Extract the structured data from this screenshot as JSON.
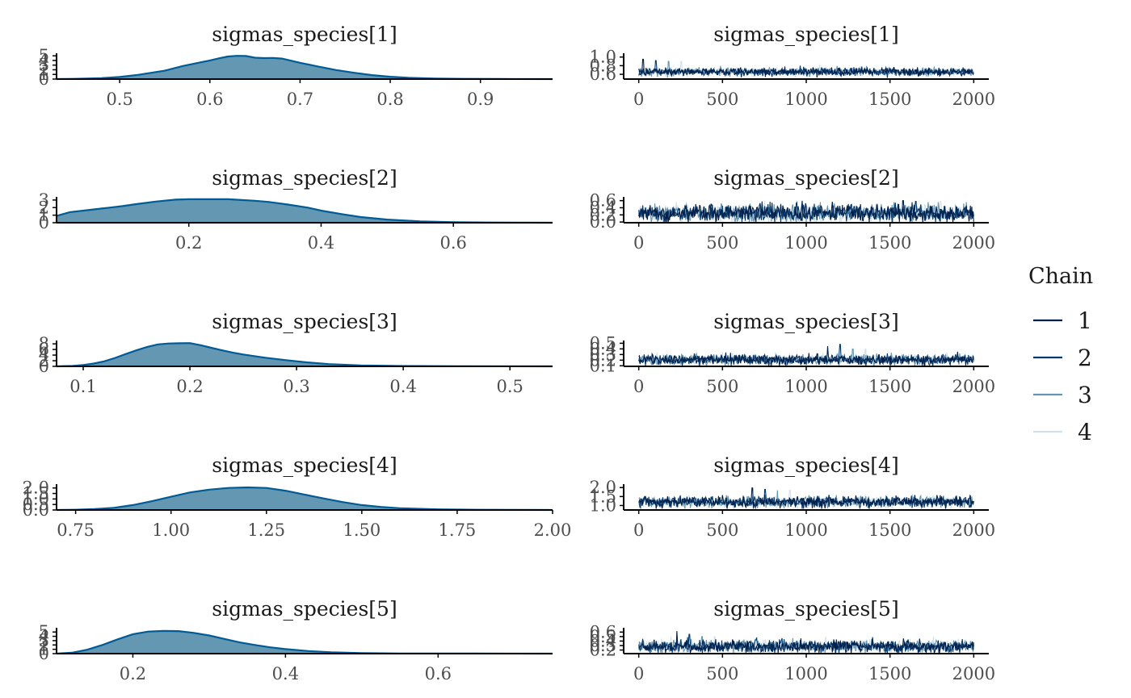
{
  "colors": {
    "chain": [
      "#011f4b",
      "#03396c",
      "#6497b1",
      "#d1e1ec"
    ],
    "density_fill": "#6497b1",
    "density_line": "#005b96",
    "axis": "#000000"
  },
  "legend": {
    "title": "Chain",
    "entries": [
      "1",
      "2",
      "3",
      "4"
    ],
    "placement": "right"
  },
  "chart_data": [
    {
      "type": "area",
      "subtype": "density",
      "title": "sigmas_species[1]",
      "xlim": [
        0.43,
        0.98
      ],
      "ylim": [
        0,
        5.2
      ],
      "x_ticks": [
        0.5,
        0.6,
        0.7,
        0.8,
        0.9
      ],
      "x_tick_labels": [
        "0.5",
        "0.6",
        "0.7",
        "0.8",
        "0.9"
      ],
      "y_ticks": [
        0,
        1,
        2,
        3,
        4,
        5
      ],
      "y_tick_labels": [
        "0",
        "1",
        "2",
        "3",
        "4",
        "5"
      ],
      "x": [
        0.43,
        0.45,
        0.48,
        0.5,
        0.52,
        0.55,
        0.57,
        0.59,
        0.6,
        0.61,
        0.62,
        0.63,
        0.64,
        0.65,
        0.66,
        0.67,
        0.68,
        0.7,
        0.72,
        0.74,
        0.76,
        0.78,
        0.8,
        0.82,
        0.85,
        0.88,
        0.92,
        0.98
      ],
      "y": [
        0.0,
        0.05,
        0.2,
        0.45,
        0.9,
        1.8,
        2.8,
        3.6,
        4.0,
        4.45,
        4.85,
        5.0,
        4.95,
        4.6,
        4.5,
        4.55,
        4.4,
        3.5,
        2.7,
        1.95,
        1.35,
        0.85,
        0.5,
        0.28,
        0.12,
        0.05,
        0.02,
        0.0
      ]
    },
    {
      "type": "line",
      "subtype": "trace",
      "title": "sigmas_species[1]",
      "xlim": [
        -90,
        2090
      ],
      "ylim": [
        0.49,
        1.05
      ],
      "x_ticks": [
        0,
        500,
        1000,
        1500,
        2000
      ],
      "x_tick_labels": [
        "0",
        "500",
        "1000",
        "1500",
        "2000"
      ],
      "y_ticks": [
        0.6,
        0.8,
        1.0
      ],
      "y_tick_labels": [
        "0.6",
        "0.8",
        "1.0"
      ],
      "n_iter": 2000,
      "series": [
        {
          "chain": "1",
          "mean": 0.66,
          "sd": 0.045,
          "min": 0.52,
          "max": 0.95
        },
        {
          "chain": "2",
          "mean": 0.66,
          "sd": 0.045,
          "min": 0.52,
          "max": 0.92
        },
        {
          "chain": "3",
          "mean": 0.66,
          "sd": 0.045,
          "min": 0.52,
          "max": 0.9
        },
        {
          "chain": "4",
          "mean": 0.66,
          "sd": 0.045,
          "min": 0.52,
          "max": 0.9
        }
      ]
    },
    {
      "type": "area",
      "subtype": "density",
      "title": "sigmas_species[2]",
      "xlim": [
        0.0,
        0.75
      ],
      "ylim": [
        0,
        3.2
      ],
      "x_ticks": [
        0.2,
        0.4,
        0.6
      ],
      "x_tick_labels": [
        "0.2",
        "0.4",
        "0.6"
      ],
      "y_ticks": [
        0,
        1,
        2,
        3
      ],
      "y_tick_labels": [
        "0",
        "1",
        "2",
        "3"
      ],
      "x": [
        0.0,
        0.02,
        0.05,
        0.08,
        0.1,
        0.12,
        0.15,
        0.18,
        0.2,
        0.24,
        0.26,
        0.28,
        0.3,
        0.32,
        0.35,
        0.38,
        0.4,
        0.43,
        0.46,
        0.5,
        0.55,
        0.6,
        0.65,
        0.75
      ],
      "y": [
        0.9,
        1.4,
        1.7,
        2.0,
        2.2,
        2.45,
        2.8,
        3.05,
        3.1,
        3.1,
        3.1,
        3.0,
        2.9,
        2.75,
        2.4,
        2.0,
        1.6,
        1.15,
        0.75,
        0.42,
        0.18,
        0.07,
        0.03,
        0.0
      ]
    },
    {
      "type": "line",
      "subtype": "trace",
      "title": "sigmas_species[2]",
      "xlim": [
        -90,
        2090
      ],
      "ylim": [
        -0.02,
        0.66
      ],
      "x_ticks": [
        0,
        500,
        1000,
        1500,
        2000
      ],
      "x_tick_labels": [
        "0",
        "500",
        "1000",
        "1500",
        "2000"
      ],
      "y_ticks": [
        0.0,
        0.2,
        0.4,
        0.6
      ],
      "y_tick_labels": [
        "0.0",
        "0.2",
        "0.4",
        "0.6"
      ],
      "n_iter": 2000,
      "series": [
        {
          "chain": "1",
          "mean": 0.25,
          "sd": 0.12,
          "min": 0.0,
          "max": 0.6
        },
        {
          "chain": "2",
          "mean": 0.25,
          "sd": 0.12,
          "min": 0.0,
          "max": 0.58
        },
        {
          "chain": "3",
          "mean": 0.25,
          "sd": 0.12,
          "min": 0.0,
          "max": 0.56
        },
        {
          "chain": "4",
          "mean": 0.25,
          "sd": 0.12,
          "min": 0.0,
          "max": 0.58
        }
      ]
    },
    {
      "type": "area",
      "subtype": "density",
      "title": "sigmas_species[3]",
      "xlim": [
        0.075,
        0.54
      ],
      "ylim": [
        0,
        8.6
      ],
      "x_ticks": [
        0.1,
        0.2,
        0.3,
        0.4,
        0.5
      ],
      "x_tick_labels": [
        "0.1",
        "0.2",
        "0.3",
        "0.4",
        "0.5"
      ],
      "y_ticks": [
        0,
        2,
        4,
        6,
        8
      ],
      "y_tick_labels": [
        "0",
        "2",
        "4",
        "6",
        "8"
      ],
      "x": [
        0.075,
        0.09,
        0.1,
        0.11,
        0.12,
        0.13,
        0.14,
        0.15,
        0.16,
        0.17,
        0.18,
        0.19,
        0.2,
        0.21,
        0.22,
        0.23,
        0.24,
        0.25,
        0.27,
        0.29,
        0.31,
        0.33,
        0.36,
        0.4,
        0.45,
        0.54
      ],
      "y": [
        0.0,
        0.15,
        0.5,
        1.0,
        1.8,
        3.0,
        4.4,
        5.7,
        6.9,
        7.8,
        8.1,
        8.2,
        8.25,
        7.5,
        6.6,
        5.7,
        4.9,
        4.2,
        3.1,
        2.2,
        1.4,
        0.8,
        0.35,
        0.12,
        0.03,
        0.0
      ]
    },
    {
      "type": "line",
      "subtype": "trace",
      "title": "sigmas_species[3]",
      "xlim": [
        -90,
        2090
      ],
      "ylim": [
        0.09,
        0.52
      ],
      "x_ticks": [
        0,
        500,
        1000,
        1500,
        2000
      ],
      "x_tick_labels": [
        "0",
        "500",
        "1000",
        "1500",
        "2000"
      ],
      "y_ticks": [
        0.1,
        0.2,
        0.3,
        0.4,
        0.5
      ],
      "y_tick_labels": [
        "0.1",
        "0.2",
        "0.3",
        "0.4",
        "0.5"
      ],
      "n_iter": 2000,
      "series": [
        {
          "chain": "1",
          "mean": 0.21,
          "sd": 0.045,
          "min": 0.1,
          "max": 0.45
        },
        {
          "chain": "2",
          "mean": 0.21,
          "sd": 0.045,
          "min": 0.1,
          "max": 0.48
        },
        {
          "chain": "3",
          "mean": 0.21,
          "sd": 0.045,
          "min": 0.1,
          "max": 0.4
        },
        {
          "chain": "4",
          "mean": 0.21,
          "sd": 0.045,
          "min": 0.1,
          "max": 0.4
        }
      ]
    },
    {
      "type": "area",
      "subtype": "density",
      "title": "sigmas_species[4]",
      "xlim": [
        0.7,
        2.0
      ],
      "ylim": [
        0,
        2.2
      ],
      "x_ticks": [
        0.75,
        1.0,
        1.25,
        1.5,
        1.75,
        2.0
      ],
      "x_tick_labels": [
        "0.75",
        "1.00",
        "1.25",
        "1.50",
        "1.75",
        "2.00"
      ],
      "y_ticks": [
        0.0,
        0.5,
        1.0,
        1.5,
        2.0
      ],
      "y_tick_labels": [
        "0.0",
        "0.5",
        "1.0",
        "1.5",
        "2.0"
      ],
      "x": [
        0.7,
        0.75,
        0.8,
        0.85,
        0.9,
        0.95,
        1.0,
        1.05,
        1.1,
        1.15,
        1.2,
        1.25,
        1.3,
        1.35,
        1.4,
        1.45,
        1.5,
        1.55,
        1.6,
        1.7,
        1.8,
        1.9,
        2.0
      ],
      "y": [
        0.0,
        0.02,
        0.08,
        0.2,
        0.45,
        0.8,
        1.2,
        1.6,
        1.85,
        2.0,
        2.05,
        2.0,
        1.75,
        1.4,
        1.05,
        0.72,
        0.45,
        0.28,
        0.16,
        0.06,
        0.02,
        0.01,
        0.0
      ]
    },
    {
      "type": "line",
      "subtype": "trace",
      "title": "sigmas_species[4]",
      "xlim": [
        -90,
        2090
      ],
      "ylim": [
        0.75,
        2.1
      ],
      "x_ticks": [
        0,
        500,
        1000,
        1500,
        2000
      ],
      "x_tick_labels": [
        "0",
        "500",
        "1000",
        "1500",
        "2000"
      ],
      "y_ticks": [
        1.0,
        1.5,
        2.0
      ],
      "y_tick_labels": [
        "1.0",
        "1.5",
        "2.0"
      ],
      "n_iter": 2000,
      "series": [
        {
          "chain": "1",
          "mean": 1.2,
          "sd": 0.15,
          "min": 0.82,
          "max": 1.98
        },
        {
          "chain": "2",
          "mean": 1.2,
          "sd": 0.15,
          "min": 0.82,
          "max": 1.9
        },
        {
          "chain": "3",
          "mean": 1.2,
          "sd": 0.15,
          "min": 0.82,
          "max": 1.85
        },
        {
          "chain": "4",
          "mean": 1.2,
          "sd": 0.15,
          "min": 0.82,
          "max": 1.85
        }
      ]
    },
    {
      "type": "area",
      "subtype": "density",
      "title": "sigmas_species[5]",
      "xlim": [
        0.1,
        0.75
      ],
      "ylim": [
        0,
        5.6
      ],
      "x_ticks": [
        0.2,
        0.4,
        0.6
      ],
      "x_tick_labels": [
        "0.2",
        "0.4",
        "0.6"
      ],
      "y_ticks": [
        0,
        1,
        2,
        3,
        4,
        5
      ],
      "y_tick_labels": [
        "0",
        "1",
        "2",
        "3",
        "4",
        "5"
      ],
      "x": [
        0.1,
        0.12,
        0.14,
        0.16,
        0.18,
        0.2,
        0.22,
        0.24,
        0.26,
        0.28,
        0.3,
        0.32,
        0.34,
        0.36,
        0.38,
        0.4,
        0.43,
        0.46,
        0.5,
        0.55,
        0.6,
        0.65,
        0.75
      ],
      "y": [
        0.0,
        0.2,
        0.9,
        2.0,
        3.3,
        4.5,
        5.1,
        5.25,
        5.2,
        4.8,
        4.2,
        3.4,
        2.6,
        2.0,
        1.45,
        1.05,
        0.6,
        0.32,
        0.13,
        0.04,
        0.02,
        0.01,
        0.0
      ]
    },
    {
      "type": "line",
      "subtype": "trace",
      "title": "sigmas_species[5]",
      "xlim": [
        -90,
        2090
      ],
      "ylim": [
        0.12,
        0.66
      ],
      "x_ticks": [
        0,
        500,
        1000,
        1500,
        2000
      ],
      "x_tick_labels": [
        "0",
        "500",
        "1000",
        "1500",
        "2000"
      ],
      "y_ticks": [
        0.2,
        0.3,
        0.4,
        0.5,
        0.6
      ],
      "y_tick_labels": [
        "0.2",
        "0.3",
        "0.4",
        "0.5",
        "0.6"
      ],
      "n_iter": 2000,
      "series": [
        {
          "chain": "1",
          "mean": 0.28,
          "sd": 0.07,
          "min": 0.14,
          "max": 0.62
        },
        {
          "chain": "2",
          "mean": 0.28,
          "sd": 0.07,
          "min": 0.14,
          "max": 0.55
        },
        {
          "chain": "3",
          "mean": 0.28,
          "sd": 0.07,
          "min": 0.14,
          "max": 0.5
        },
        {
          "chain": "4",
          "mean": 0.28,
          "sd": 0.07,
          "min": 0.14,
          "max": 0.5
        }
      ]
    }
  ]
}
